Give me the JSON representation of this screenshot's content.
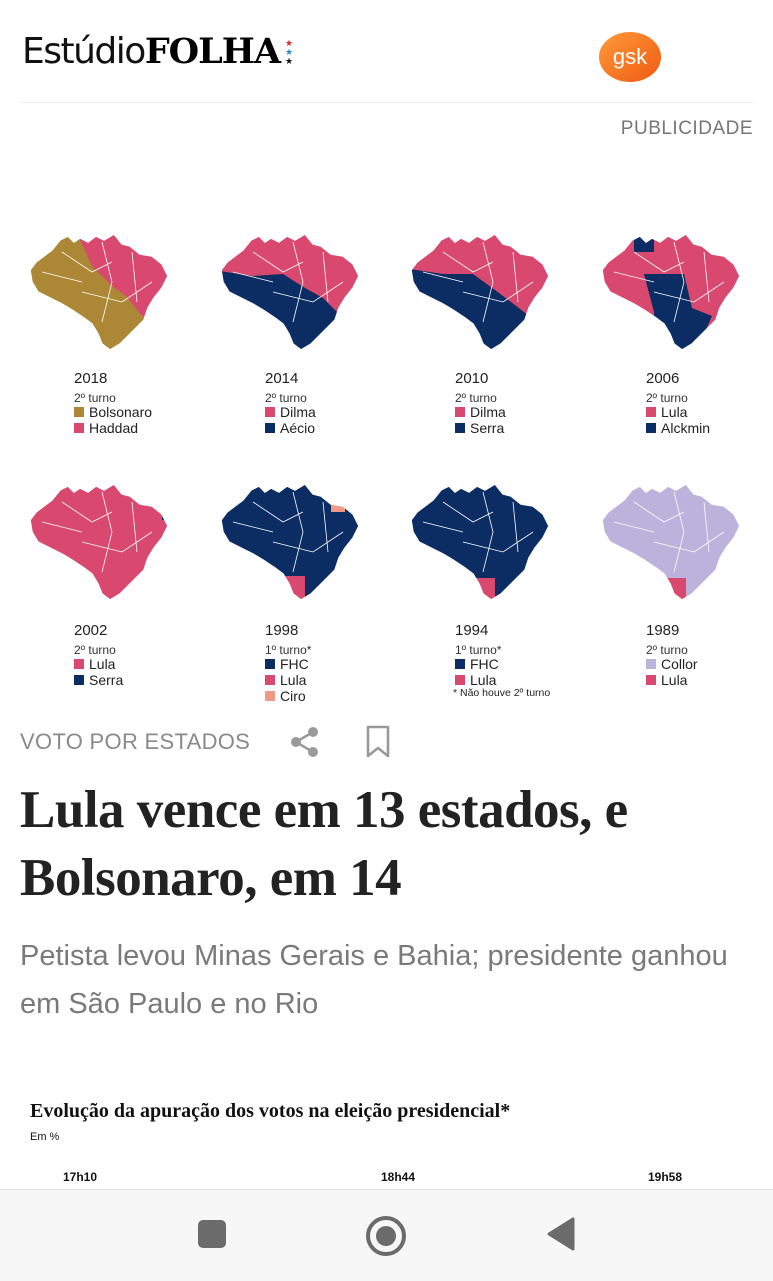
{
  "header": {
    "brand_light": "Estúdio",
    "brand_bold": "FOLHA",
    "sponsor_logo_text": "gsk",
    "ad_label": "PUBLICIDADE"
  },
  "colors": {
    "haddad_pt": "#d8486f",
    "bolsonaro": "#ac8735",
    "psdb_blue": "#0c2d63",
    "ciro": "#f09a86",
    "collor": "#bbb3db"
  },
  "maps": [
    {
      "year": "2018",
      "round": "2º turno",
      "legend": [
        {
          "name": "Bolsonaro",
          "color": "#ac8735"
        },
        {
          "name": "Haddad",
          "color": "#d8486f"
        }
      ]
    },
    {
      "year": "2014",
      "round": "2º turno",
      "legend": [
        {
          "name": "Dilma",
          "color": "#d8486f"
        },
        {
          "name": "Aécio",
          "color": "#0c2d63"
        }
      ]
    },
    {
      "year": "2010",
      "round": "2º turno",
      "legend": [
        {
          "name": "Dilma",
          "color": "#d8486f"
        },
        {
          "name": "Serra",
          "color": "#0c2d63"
        }
      ]
    },
    {
      "year": "2006",
      "round": "2º turno",
      "legend": [
        {
          "name": "Lula",
          "color": "#d8486f"
        },
        {
          "name": "Alckmin",
          "color": "#0c2d63"
        }
      ]
    },
    {
      "year": "2002",
      "round": "2º turno",
      "legend": [
        {
          "name": "Lula",
          "color": "#d8486f"
        },
        {
          "name": "Serra",
          "color": "#0c2d63"
        }
      ]
    },
    {
      "year": "1998",
      "round": "1º turno*",
      "legend": [
        {
          "name": "FHC",
          "color": "#0c2d63"
        },
        {
          "name": "Lula",
          "color": "#d8486f"
        },
        {
          "name": "Ciro",
          "color": "#f09a86"
        }
      ]
    },
    {
      "year": "1994",
      "round": "1º turno*",
      "legend": [
        {
          "name": "FHC",
          "color": "#0c2d63"
        },
        {
          "name": "Lula",
          "color": "#d8486f"
        }
      ],
      "note": "* Não houve 2º turno"
    },
    {
      "year": "1989",
      "round": "2º turno",
      "legend": [
        {
          "name": "Collor",
          "color": "#bbb3db"
        },
        {
          "name": "Lula",
          "color": "#d8486f"
        }
      ]
    }
  ],
  "article": {
    "section": "VOTO POR ESTADOS",
    "headline": "Lula vence em 13 estados, e Bolsonaro, em 14",
    "subheadline": "Petista levou Minas Gerais e Bahia; presidente ganhou em São Paulo e no Rio"
  },
  "chart": {
    "title": "Evolução da apuração dos votos na eleição presidencial*",
    "unit": "Em %",
    "times": [
      "17h10",
      "18h44",
      "19h58"
    ]
  },
  "icons": {
    "share": "share-icon",
    "bookmark": "bookmark-icon",
    "nav_recents": "square-icon",
    "nav_home": "circle-icon",
    "nav_back": "triangle-back-icon"
  }
}
